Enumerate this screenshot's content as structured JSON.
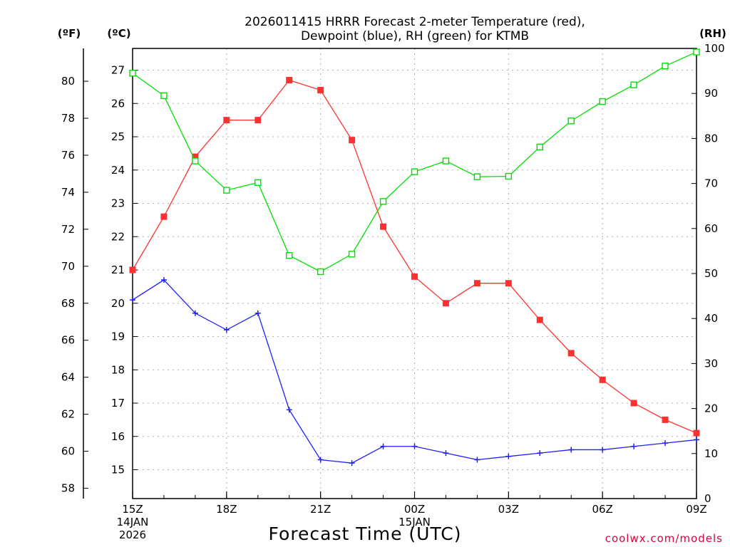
{
  "chart_data": {
    "type": "line",
    "title": [
      "2026011415 HRRR Forecast 2-meter Temperature (red),",
      "Dewpoint (blue), RH (green) for KTMB"
    ],
    "xlabel": "Forecast Time (UTC)",
    "credit": "coolwx.com/models",
    "axis_heads": {
      "far_left": "(ºF)",
      "left": "(ºC)",
      "right": "(RH)"
    },
    "x_date_labels": [
      {
        "at_hour": 0,
        "lines": [
          "15Z",
          "14JAN",
          "2026"
        ]
      },
      {
        "at_hour": 9,
        "lines": [
          "00Z",
          "15JAN"
        ]
      }
    ],
    "x": [
      0,
      1,
      2,
      3,
      4,
      5,
      6,
      7,
      8,
      9,
      10,
      11,
      12,
      13,
      14,
      15,
      16,
      17,
      18
    ],
    "x_ticks": [
      {
        "at_hour": 0,
        "label": "15Z"
      },
      {
        "at_hour": 3,
        "label": "18Z"
      },
      {
        "at_hour": 6,
        "label": "21Z"
      },
      {
        "at_hour": 9,
        "label": "00Z"
      },
      {
        "at_hour": 12,
        "label": "03Z"
      },
      {
        "at_hour": 15,
        "label": "06Z"
      },
      {
        "at_hour": 18,
        "label": "09Z"
      }
    ],
    "xlim": [
      0,
      18
    ],
    "ylim_c": [
      14.2,
      27.6
    ],
    "ylim_rh": [
      0,
      100
    ],
    "y_ticks_c": [
      15,
      16,
      17,
      18,
      19,
      20,
      21,
      22,
      23,
      24,
      25,
      26,
      27
    ],
    "y_ticks_f": [
      58,
      60,
      62,
      64,
      66,
      68,
      70,
      72,
      74,
      76,
      78,
      80
    ],
    "y_ticks_rh": [
      0,
      10,
      20,
      30,
      40,
      50,
      60,
      70,
      80,
      90,
      100
    ],
    "grid": true,
    "series": [
      {
        "axis": "c",
        "color": "#ff3030",
        "marker": "filled-square",
        "values": [
          21.0,
          22.6,
          24.4,
          25.5,
          25.5,
          26.7,
          26.4,
          24.9,
          22.3,
          20.8,
          20.0,
          20.6,
          20.6,
          19.5,
          18.5,
          17.7,
          17.0,
          16.5,
          16.1
        ]
      },
      {
        "axis": "c",
        "color": "#2020ff",
        "marker": "plus",
        "values": [
          20.1,
          20.7,
          19.7,
          19.2,
          19.7,
          16.8,
          15.3,
          15.2,
          15.7,
          15.7,
          15.5,
          15.3,
          15.4,
          15.5,
          15.6,
          15.6,
          15.7,
          15.8,
          15.9
        ]
      },
      {
        "axis": "rh",
        "color": "#00e000",
        "marker": "open-square",
        "values": [
          94.5,
          89.5,
          75.0,
          68.5,
          70.2,
          54.0,
          50.4,
          54.3,
          66.0,
          72.6,
          75.0,
          71.5,
          71.6,
          78.1,
          83.9,
          88.2,
          91.9,
          96.1,
          99.2
        ]
      }
    ]
  }
}
